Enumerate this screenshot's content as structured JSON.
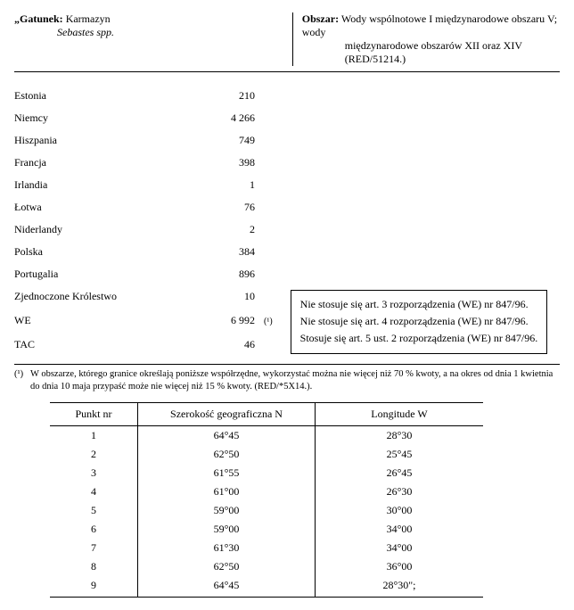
{
  "header": {
    "gatunek_label": "„Gatunek:",
    "species_common": "Karmazyn",
    "species_latin": "Sebastes spp.",
    "obszar_label": "Obszar:",
    "area_line1": "Wody wspólnotowe I międzynarodowe obszaru V; wody",
    "area_line2": "międzynarodowe obszarów XII oraz XIV",
    "area_code": "(RED/51214.)"
  },
  "quotas": [
    {
      "country": "Estonia",
      "value": "210",
      "ref": ""
    },
    {
      "country": "Niemcy",
      "value": "4 266",
      "ref": ""
    },
    {
      "country": "Hiszpania",
      "value": "749",
      "ref": ""
    },
    {
      "country": "Francja",
      "value": "398",
      "ref": ""
    },
    {
      "country": "Irlandia",
      "value": "1",
      "ref": ""
    },
    {
      "country": "Łotwa",
      "value": "76",
      "ref": ""
    },
    {
      "country": "Niderlandy",
      "value": "2",
      "ref": ""
    },
    {
      "country": "Polska",
      "value": "384",
      "ref": ""
    },
    {
      "country": "Portugalia",
      "value": "896",
      "ref": ""
    },
    {
      "country": "Zjednoczone Królestwo",
      "value": "10",
      "ref": ""
    },
    {
      "country": "WE",
      "value": "6 992",
      "ref": "(¹)"
    },
    {
      "country": "TAC",
      "value": "46",
      "ref": ""
    }
  ],
  "notes": {
    "l1": "Nie stosuje się art. 3 rozporządzenia (WE) nr 847/96.",
    "l2": "Nie stosuje się art. 4 rozporządzenia (WE) nr 847/96.",
    "l3": "Stosuje się art. 5 ust. 2 rozporządzenia (WE) nr 847/96."
  },
  "footnote": {
    "ref": "(¹)",
    "text": "W obszarze, którego granice określają poniższe współrzędne, wykorzystać można nie więcej niż 70 % kwoty, a na okres od dnia 1 kwietnia do dnia 10 maja przypaść może nie więcej niż 15 % kwoty. (RED/*5X14.)."
  },
  "coord_table": {
    "headers": {
      "punkt": "Punkt nr",
      "lat": "Szerokość geograficzna N",
      "lon": "Longitude W"
    },
    "rows": [
      {
        "n": "1",
        "lat": "64°45",
        "lon": "28°30"
      },
      {
        "n": "2",
        "lat": "62°50",
        "lon": "25°45"
      },
      {
        "n": "3",
        "lat": "61°55",
        "lon": "26°45"
      },
      {
        "n": "4",
        "lat": "61°00",
        "lon": "26°30"
      },
      {
        "n": "5",
        "lat": "59°00",
        "lon": "30°00"
      },
      {
        "n": "6",
        "lat": "59°00",
        "lon": "34°00"
      },
      {
        "n": "7",
        "lat": "61°30",
        "lon": "34°00"
      },
      {
        "n": "8",
        "lat": "62°50",
        "lon": "36°00"
      },
      {
        "n": "9",
        "lat": "64°45",
        "lon": "28°30\";"
      }
    ]
  }
}
